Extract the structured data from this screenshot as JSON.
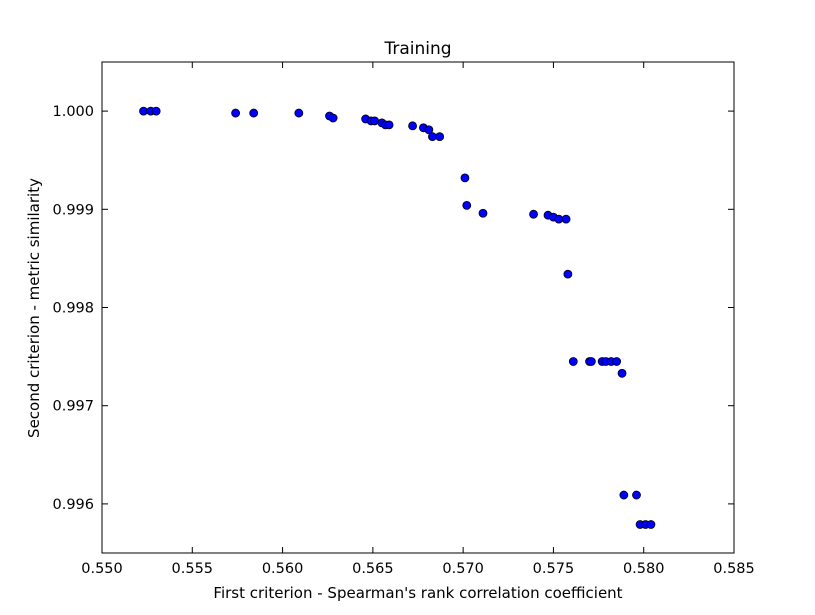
{
  "chart_data": {
    "type": "scatter",
    "title": "Training",
    "xlabel": "First criterion - Spearman's rank correlation coefficient",
    "ylabel": "Second criterion - metric similarity",
    "xlim": [
      0.55,
      0.585
    ],
    "ylim": [
      0.9955,
      1.0005
    ],
    "xticks": [
      "0.550",
      "0.555",
      "0.560",
      "0.565",
      "0.570",
      "0.575",
      "0.580",
      "0.585"
    ],
    "yticks": [
      "0.996",
      "0.997",
      "0.998",
      "0.999",
      "1.000"
    ],
    "grid": false,
    "marker_color": "#0000ff",
    "marker_edge": "#000000",
    "points": [
      [
        0.5523,
        1.0
      ],
      [
        0.5527,
        1.0
      ],
      [
        0.553,
        1.0
      ],
      [
        0.5574,
        0.99998
      ],
      [
        0.5584,
        0.99998
      ],
      [
        0.5609,
        0.99998
      ],
      [
        0.5626,
        0.99995
      ],
      [
        0.5628,
        0.99993
      ],
      [
        0.5646,
        0.99992
      ],
      [
        0.5649,
        0.9999
      ],
      [
        0.5651,
        0.9999
      ],
      [
        0.5655,
        0.99988
      ],
      [
        0.5657,
        0.99986
      ],
      [
        0.5659,
        0.99986
      ],
      [
        0.5672,
        0.99985
      ],
      [
        0.5678,
        0.99983
      ],
      [
        0.5681,
        0.99981
      ],
      [
        0.5683,
        0.99974
      ],
      [
        0.5687,
        0.99974
      ],
      [
        0.5701,
        0.99932
      ],
      [
        0.5702,
        0.99904
      ],
      [
        0.5711,
        0.99896
      ],
      [
        0.5739,
        0.99895
      ],
      [
        0.5747,
        0.99894
      ],
      [
        0.575,
        0.99892
      ],
      [
        0.5753,
        0.9989
      ],
      [
        0.5757,
        0.9989
      ],
      [
        0.5758,
        0.99834
      ],
      [
        0.5761,
        0.99745
      ],
      [
        0.577,
        0.99745
      ],
      [
        0.5771,
        0.99745
      ],
      [
        0.5777,
        0.99745
      ],
      [
        0.5779,
        0.99745
      ],
      [
        0.5782,
        0.99745
      ],
      [
        0.5785,
        0.99745
      ],
      [
        0.5788,
        0.99733
      ],
      [
        0.5789,
        0.99609
      ],
      [
        0.5796,
        0.99609
      ],
      [
        0.5798,
        0.99579
      ],
      [
        0.5801,
        0.99579
      ],
      [
        0.5804,
        0.99579
      ]
    ]
  }
}
